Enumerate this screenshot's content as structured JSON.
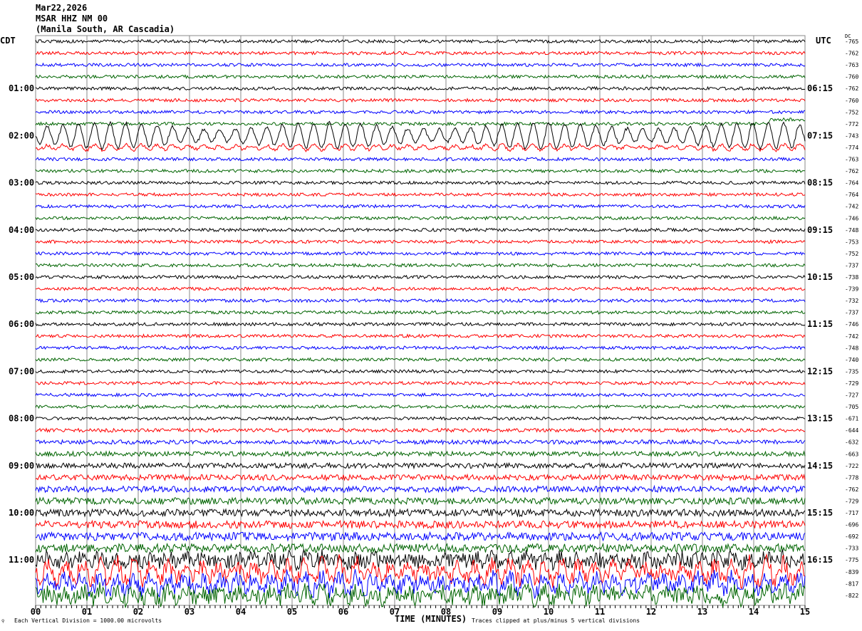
{
  "header": {
    "date": "Mar22,2026",
    "station": "MSAR HHZ NM 00",
    "location": "(Manila South, AR Cascadia)"
  },
  "chart_data": {
    "type": "line",
    "left_tz": "CDT",
    "right_tz": "UTC",
    "dc_header": "DC",
    "left_labels": [
      "01:00",
      "02:00",
      "03:00",
      "04:00",
      "05:00",
      "06:00",
      "07:00",
      "08:00",
      "09:00",
      "10:00",
      "11:00"
    ],
    "right_labels": [
      "06:15",
      "07:15",
      "08:15",
      "09:15",
      "10:15",
      "11:15",
      "12:15",
      "13:15",
      "14:15",
      "15:15",
      "16:15"
    ],
    "dc_offsets": [
      -765,
      -762,
      -763,
      -760,
      -762,
      -760,
      -752,
      -772,
      -743,
      -774,
      -763,
      -762,
      -764,
      -764,
      -742,
      -746,
      -748,
      -753,
      -752,
      -737,
      -738,
      -739,
      -732,
      -737,
      -746,
      -742,
      -748,
      -740,
      -735,
      -729,
      -727,
      -705,
      -671,
      -644,
      -632,
      -663,
      -722,
      -778,
      -762,
      -729,
      -717,
      -696,
      -692,
      -733,
      -775,
      -839,
      -817,
      -822
    ],
    "x_ticks": [
      "00",
      "01",
      "02",
      "03",
      "04",
      "05",
      "06",
      "07",
      "08",
      "09",
      "10",
      "11",
      "12",
      "13",
      "14",
      "15"
    ],
    "xlabel": "TIME (MINUTES)",
    "xlim": [
      0,
      15
    ],
    "trace_colors": [
      "#000000",
      "#ff0000",
      "#0000ff",
      "#006400"
    ],
    "scale_note": "Each Vertical Division = 1000.00 microvolts",
    "clip_note": "Traces clipped at plus/minus 5 vertical divisions"
  }
}
